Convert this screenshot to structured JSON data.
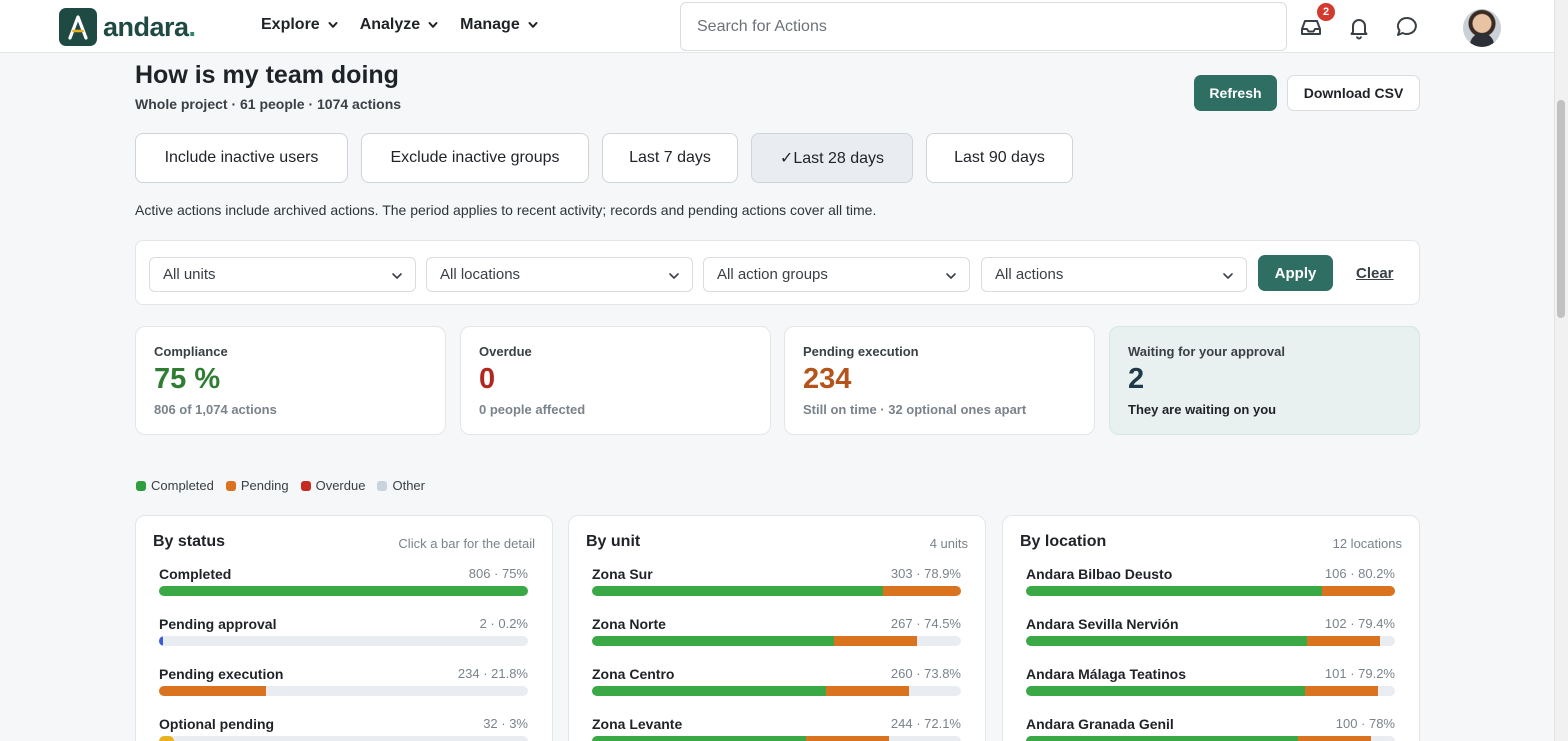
{
  "header": {
    "logo_text": "andara",
    "logo_dot": ".",
    "nav": [
      {
        "label": "Explore"
      },
      {
        "label": "Analyze"
      },
      {
        "label": "Manage"
      }
    ],
    "search_placeholder": "Search for Actions",
    "inbox_badge": "2",
    "icons": [
      "inbox-icon",
      "bell-icon",
      "chat-icon"
    ]
  },
  "page": {
    "title": "How is my team doing",
    "subtitle": "Whole project · 61 people · 1074 actions",
    "refresh_label": "Refresh",
    "download_label": "Download CSV"
  },
  "chips": [
    {
      "label": "Include inactive users",
      "active": false
    },
    {
      "label": "Exclude inactive groups",
      "active": false
    },
    {
      "label": "Last 7 days",
      "active": false
    },
    {
      "label": "✓Last 28 days",
      "active": true
    },
    {
      "label": "Last 90 days",
      "active": false
    }
  ],
  "note": "Active actions include archived actions. The period applies to recent activity; records and pending actions cover all time.",
  "filters": {
    "units": "All units",
    "locations": "All locations",
    "action_groups": "All action groups",
    "actions": "All actions",
    "apply_label": "Apply",
    "clear_label": "Clear"
  },
  "kpis": [
    {
      "label": "Compliance",
      "value": "75 %",
      "sub": "806 of 1,074 actions",
      "color": "#2e7d32"
    },
    {
      "label": "Overdue",
      "value": "0",
      "sub": "0 people affected",
      "color": "#b3261e"
    },
    {
      "label": "Pending execution",
      "value": "234",
      "sub": "Still on time · 32 optional ones apart",
      "color": "#b5531c"
    },
    {
      "label": "Waiting for your approval",
      "value": "2",
      "sub": "They are waiting on you",
      "color": "#1f3a4a"
    }
  ],
  "legend": [
    {
      "label": "Completed",
      "color": "#2e9e3f"
    },
    {
      "label": "Pending",
      "color": "#d9731f"
    },
    {
      "label": "Overdue",
      "color": "#c62a21"
    },
    {
      "label": "Other",
      "color": "#c9d3de"
    }
  ],
  "colors": {
    "completed": "#3aa845",
    "pending": "#d9731f",
    "approval": "#3b5bd9",
    "optional": "#e8b21f",
    "track": "#e9edf1",
    "accent": "#2f6f63"
  },
  "panels": {
    "by_status": {
      "title": "By status",
      "meta": "Click a bar for the detail",
      "rows": [
        {
          "label": "Completed",
          "value": "806 · 75%",
          "segments": [
            {
              "kind": "completed",
              "share": 1.0
            }
          ]
        },
        {
          "label": "Pending approval",
          "value": "2 · 0.2%",
          "segments": [
            {
              "kind": "approval",
              "share": 0.01
            }
          ]
        },
        {
          "label": "Pending execution",
          "value": "234 · 21.8%",
          "segments": [
            {
              "kind": "pending",
              "share": 0.29
            }
          ]
        },
        {
          "label": "Optional pending",
          "value": "32 · 3%",
          "segments": [
            {
              "kind": "optional",
              "share": 0.04
            }
          ]
        }
      ]
    },
    "by_unit": {
      "title": "By unit",
      "meta": "4 units",
      "rows": [
        {
          "label": "Zona Sur",
          "value": "303 · 78.9%",
          "segments": [
            {
              "kind": "completed",
              "share": 0.789
            },
            {
              "kind": "pending",
              "share": 0.211
            }
          ]
        },
        {
          "label": "Zona Norte",
          "value": "267 · 74.5%",
          "segments": [
            {
              "kind": "completed",
              "share": 0.655
            },
            {
              "kind": "pending",
              "share": 0.225
            }
          ]
        },
        {
          "label": "Zona Centro",
          "value": "260 · 73.8%",
          "segments": [
            {
              "kind": "completed",
              "share": 0.633
            },
            {
              "kind": "pending",
              "share": 0.225
            }
          ]
        },
        {
          "label": "Zona Levante",
          "value": "244 · 72.1%",
          "segments": [
            {
              "kind": "completed",
              "share": 0.58
            },
            {
              "kind": "pending",
              "share": 0.225
            }
          ]
        }
      ]
    },
    "by_location": {
      "title": "By location",
      "meta": "12 locations",
      "rows": [
        {
          "label": "Andara Bilbao Deusto",
          "value": "106 · 80.2%",
          "segments": [
            {
              "kind": "completed",
              "share": 0.802
            },
            {
              "kind": "pending",
              "share": 0.198
            }
          ]
        },
        {
          "label": "Andara Sevilla Nervión",
          "value": "102 · 79.4%",
          "segments": [
            {
              "kind": "completed",
              "share": 0.762
            },
            {
              "kind": "pending",
              "share": 0.198
            }
          ]
        },
        {
          "label": "Andara Málaga Teatinos",
          "value": "101 · 79.2%",
          "segments": [
            {
              "kind": "completed",
              "share": 0.755
            },
            {
              "kind": "pending",
              "share": 0.198
            }
          ]
        },
        {
          "label": "Andara Granada Genil",
          "value": "100 · 78%",
          "segments": [
            {
              "kind": "completed",
              "share": 0.737
            },
            {
              "kind": "pending",
              "share": 0.198
            }
          ]
        }
      ]
    }
  }
}
